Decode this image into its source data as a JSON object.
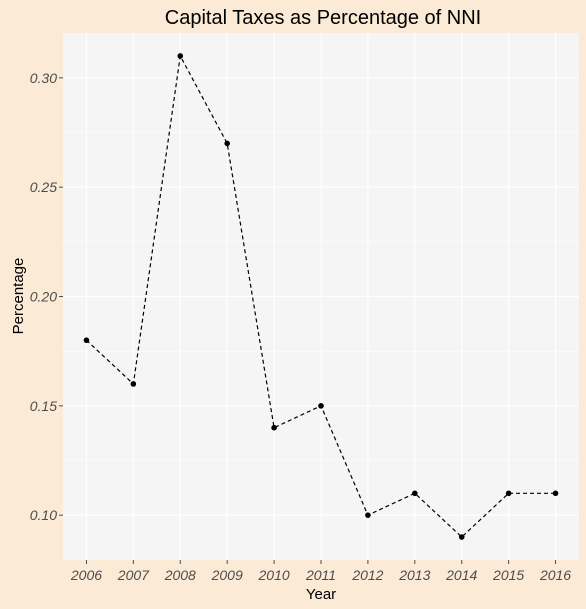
{
  "chart_data": {
    "type": "line",
    "title": "Capital Taxes as Percentage of NNI",
    "xlabel": "Year",
    "ylabel": "Percentage",
    "x": [
      "2006",
      "2007",
      "2008",
      "2009",
      "2010",
      "2011",
      "2012",
      "2013",
      "2014",
      "2015",
      "2016"
    ],
    "series": [
      {
        "values": [
          0.18,
          0.16,
          0.31,
          0.27,
          0.14,
          0.15,
          0.1,
          0.11,
          0.09,
          0.11,
          0.11
        ]
      }
    ],
    "yticks": [
      "0.10",
      "0.15",
      "0.20",
      "0.25",
      "0.30"
    ],
    "ylim": [
      0.0795,
      0.3205
    ],
    "line_style": "dashed",
    "grid": true,
    "legend": "none",
    "colors": {
      "panel": "#f5f5f5",
      "background": "#fbebd6",
      "line": "#000000"
    }
  }
}
